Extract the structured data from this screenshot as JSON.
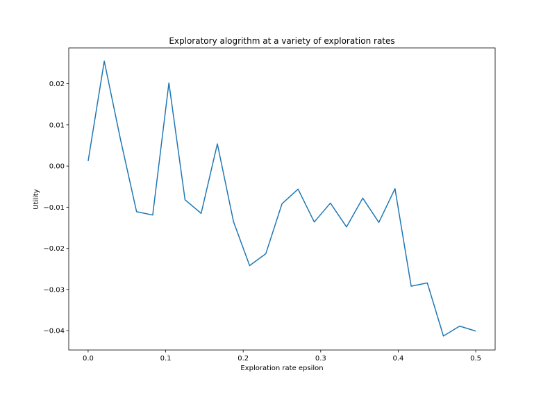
{
  "chart_data": {
    "type": "line",
    "title": "Exploratory alogrithm at a variety of exploration rates",
    "xlabel": "Exploration rate epsilon",
    "ylabel": "Utility",
    "xlim": [
      -0.025,
      0.525
    ],
    "ylim": [
      -0.0447,
      0.0287
    ],
    "xticks": [
      0.0,
      0.1,
      0.2,
      0.3,
      0.4,
      0.5
    ],
    "xtick_labels": [
      "0.0",
      "0.1",
      "0.2",
      "0.3",
      "0.4",
      "0.5"
    ],
    "yticks": [
      0.02,
      0.01,
      0.0,
      -0.01,
      -0.02,
      -0.03,
      -0.04
    ],
    "ytick_labels": [
      "0.02",
      "0.01",
      "0.00",
      "−0.01",
      "−0.02",
      "−0.03",
      "−0.04"
    ],
    "grid": false,
    "line_color": "#1f77b4",
    "series": [
      {
        "x": [
          0.0,
          0.0208,
          0.0417,
          0.0625,
          0.0833,
          0.1042,
          0.125,
          0.1458,
          0.1667,
          0.1875,
          0.2083,
          0.2292,
          0.25,
          0.2708,
          0.2917,
          0.3125,
          0.3333,
          0.3542,
          0.375,
          0.3958,
          0.4167,
          0.4375,
          0.4583,
          0.4792,
          0.5
        ],
        "y": [
          0.0012,
          0.0255,
          0.0065,
          -0.0111,
          -0.0119,
          0.0202,
          -0.0082,
          -0.0115,
          0.0054,
          -0.0135,
          -0.0242,
          -0.0213,
          -0.0092,
          -0.0056,
          -0.0136,
          -0.009,
          -0.0148,
          -0.0078,
          -0.0137,
          -0.0055,
          -0.0292,
          -0.0284,
          -0.0413,
          -0.0389,
          -0.0401
        ]
      }
    ]
  }
}
